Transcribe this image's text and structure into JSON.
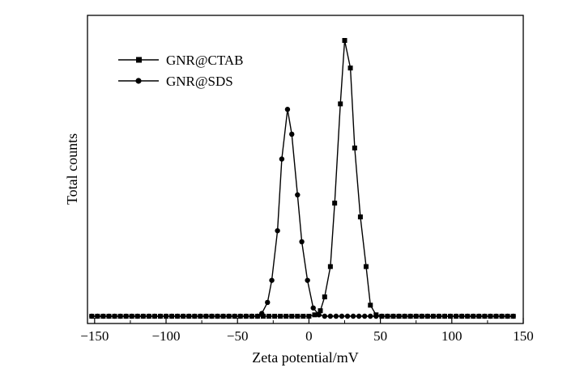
{
  "chart_data": {
    "type": "line",
    "title": "",
    "xlabel": "Zeta potential/mV",
    "ylabel": "Total counts",
    "xlim": [
      -155,
      150
    ],
    "ylim": [
      0,
      1.03
    ],
    "grid": false,
    "legend_position": "top-left",
    "x_ticks": [
      -150,
      -100,
      -50,
      0,
      50,
      100,
      150
    ],
    "x_tick_labels": [
      "−150",
      "−100",
      "−50",
      "0",
      "50",
      "100",
      "150"
    ],
    "series": [
      {
        "name": "GNR@CTAB",
        "marker": "square",
        "color": "#000000",
        "x": [
          -152,
          -148,
          -144,
          -140,
          -136,
          -132,
          -128,
          -124,
          -120,
          -116,
          -112,
          -108,
          -104,
          -100,
          -96,
          -92,
          -88,
          -84,
          -80,
          -76,
          -72,
          -68,
          -64,
          -60,
          -56,
          -52,
          -48,
          -44,
          -40,
          -36,
          -32,
          -28,
          -24,
          -20,
          -16,
          -12,
          -8,
          -4,
          0,
          4,
          8,
          11,
          15,
          18,
          22,
          25,
          29,
          32,
          36,
          40,
          43,
          47,
          51,
          55,
          59,
          63,
          67,
          71,
          75,
          79,
          83,
          87,
          91,
          95,
          99,
          103,
          107,
          111,
          115,
          119,
          123,
          127,
          131,
          135,
          139,
          143
        ],
        "y": [
          0,
          0,
          0,
          0,
          0,
          0,
          0,
          0,
          0,
          0,
          0,
          0,
          0,
          0,
          0,
          0,
          0,
          0,
          0,
          0,
          0,
          0,
          0,
          0,
          0,
          0,
          0,
          0,
          0,
          0,
          0,
          0,
          0,
          0,
          0,
          0,
          0,
          0,
          0,
          0.005,
          0.02,
          0.07,
          0.18,
          0.41,
          0.77,
          1.0,
          0.9,
          0.61,
          0.36,
          0.18,
          0.04,
          0.005,
          0,
          0,
          0,
          0,
          0,
          0,
          0,
          0,
          0,
          0,
          0,
          0,
          0,
          0,
          0,
          0,
          0,
          0,
          0,
          0,
          0,
          0,
          0,
          0
        ]
      },
      {
        "name": "GNR@SDS",
        "marker": "circle",
        "color": "#000000",
        "x": [
          -152,
          -148,
          -144,
          -140,
          -136,
          -132,
          -128,
          -124,
          -120,
          -116,
          -112,
          -108,
          -104,
          -100,
          -96,
          -92,
          -88,
          -84,
          -80,
          -76,
          -72,
          -68,
          -64,
          -60,
          -56,
          -52,
          -48,
          -44,
          -40,
          -36,
          -33,
          -29,
          -26,
          -22,
          -19,
          -15,
          -12,
          -8,
          -5,
          -1,
          3,
          7,
          11,
          15,
          19,
          23,
          27,
          31,
          35,
          39,
          43,
          47,
          51,
          55,
          59,
          63,
          67,
          71,
          75,
          79,
          83,
          87,
          91,
          95,
          99,
          103,
          107,
          111,
          115,
          119,
          123,
          127,
          131,
          135,
          139,
          143
        ],
        "y": [
          0,
          0,
          0,
          0,
          0,
          0,
          0,
          0,
          0,
          0,
          0,
          0,
          0,
          0,
          0,
          0,
          0,
          0,
          0,
          0,
          0,
          0,
          0,
          0,
          0,
          0,
          0,
          0,
          0,
          0,
          0.01,
          0.05,
          0.13,
          0.31,
          0.57,
          0.75,
          0.66,
          0.44,
          0.27,
          0.13,
          0.03,
          0.005,
          0,
          0,
          0,
          0,
          0,
          0,
          0,
          0,
          0,
          0,
          0,
          0,
          0,
          0,
          0,
          0,
          0,
          0,
          0,
          0,
          0,
          0,
          0,
          0,
          0,
          0,
          0,
          0,
          0,
          0,
          0,
          0,
          0,
          0
        ]
      }
    ]
  }
}
